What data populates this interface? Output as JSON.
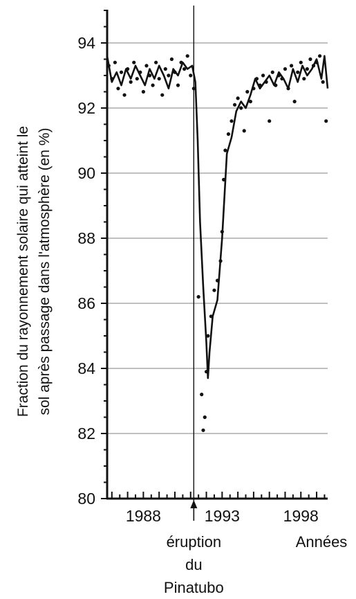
{
  "chart_data": {
    "type": "line",
    "title": "",
    "ylabel_lines": [
      "Fraction du rayonnement solaire qui atteint le",
      "sol après passage dans l'atmosphère (en %)"
    ],
    "xlabel": "Années",
    "xlim": [
      1985.7,
      1999.7
    ],
    "ylim": [
      80,
      95
    ],
    "yticks": [
      80,
      82,
      84,
      86,
      88,
      90,
      92,
      94
    ],
    "ytick_labels": [
      "80",
      "82",
      "84",
      "86",
      "88",
      "90",
      "92",
      "94"
    ],
    "xticks": [
      1988,
      1993,
      1998
    ],
    "xtick_labels": [
      "1988",
      "1993",
      "1998"
    ],
    "grid": "horizontal",
    "annotation": {
      "x": 1991.2,
      "lines": [
        "éruption",
        "du",
        "Pinatubo"
      ]
    },
    "series": [
      {
        "style": "smoothed-line",
        "x": [
          1985.7,
          1986.0,
          1986.3,
          1986.6,
          1986.9,
          1987.2,
          1987.5,
          1987.8,
          1988.1,
          1988.4,
          1988.7,
          1989.0,
          1989.3,
          1989.6,
          1989.9,
          1990.2,
          1990.5,
          1990.8,
          1991.1,
          1991.3,
          1991.45,
          1991.6,
          1991.8,
          1992.0,
          1992.1,
          1992.2,
          1992.4,
          1992.7,
          1993.0,
          1993.3,
          1993.6,
          1993.9,
          1994.2,
          1994.5,
          1994.8,
          1995.1,
          1995.4,
          1995.7,
          1996.0,
          1996.3,
          1996.6,
          1996.9,
          1997.2,
          1997.5,
          1997.8,
          1998.1,
          1998.4,
          1998.7,
          1999.0,
          1999.3,
          1999.5,
          1999.7
        ],
        "y": [
          93.6,
          92.8,
          93.1,
          92.7,
          93.2,
          92.9,
          93.3,
          93.0,
          92.7,
          93.2,
          92.9,
          93.3,
          93.0,
          92.6,
          93.2,
          93.0,
          93.4,
          93.2,
          93.3,
          92.8,
          91.0,
          88.5,
          86.5,
          84.8,
          83.7,
          84.5,
          85.6,
          86.1,
          88.0,
          90.6,
          91.1,
          91.9,
          92.2,
          92.0,
          92.4,
          92.9,
          92.6,
          92.8,
          93.0,
          92.7,
          93.1,
          92.9,
          92.6,
          93.2,
          92.8,
          93.3,
          93.0,
          93.2,
          93.5,
          92.9,
          93.6,
          92.6
        ]
      },
      {
        "style": "dots",
        "x": [
          1985.8,
          1986.0,
          1986.2,
          1986.4,
          1986.6,
          1986.8,
          1987.0,
          1987.2,
          1987.4,
          1987.6,
          1987.8,
          1988.0,
          1988.2,
          1988.4,
          1988.6,
          1988.8,
          1989.0,
          1989.2,
          1989.4,
          1989.6,
          1989.8,
          1990.0,
          1990.2,
          1990.4,
          1990.6,
          1990.8,
          1991.0,
          1991.2,
          1991.5,
          1991.7,
          1991.8,
          1991.9,
          1992.0,
          1992.1,
          1992.3,
          1992.5,
          1992.7,
          1992.9,
          1993.0,
          1993.1,
          1993.2,
          1993.4,
          1993.6,
          1993.8,
          1994.0,
          1994.2,
          1994.4,
          1994.6,
          1994.8,
          1995.0,
          1995.2,
          1995.4,
          1995.6,
          1995.8,
          1996.0,
          1996.2,
          1996.4,
          1996.6,
          1996.8,
          1997.0,
          1997.2,
          1997.4,
          1997.6,
          1997.8,
          1998.0,
          1998.2,
          1998.4,
          1998.6,
          1998.8,
          1999.0,
          1999.2,
          1999.4,
          1999.6
        ],
        "y": [
          93.3,
          92.9,
          93.4,
          92.6,
          93.1,
          92.4,
          93.2,
          92.8,
          93.4,
          92.9,
          93.1,
          92.5,
          93.3,
          93.0,
          92.7,
          93.4,
          92.9,
          92.4,
          93.2,
          93.0,
          93.5,
          93.1,
          92.7,
          93.4,
          93.2,
          93.6,
          93.0,
          92.6,
          86.2,
          83.2,
          82.1,
          82.5,
          83.9,
          85.0,
          85.6,
          86.4,
          86.7,
          87.3,
          88.2,
          89.8,
          90.7,
          91.2,
          91.6,
          92.1,
          92.3,
          92.0,
          91.3,
          92.5,
          92.2,
          92.6,
          92.9,
          92.7,
          93.0,
          92.8,
          91.6,
          93.1,
          92.7,
          93.0,
          92.9,
          93.2,
          92.6,
          93.3,
          92.2,
          93.1,
          93.4,
          92.9,
          93.2,
          93.5,
          93.3,
          93.4,
          93.6,
          92.8,
          91.6
        ]
      }
    ]
  }
}
